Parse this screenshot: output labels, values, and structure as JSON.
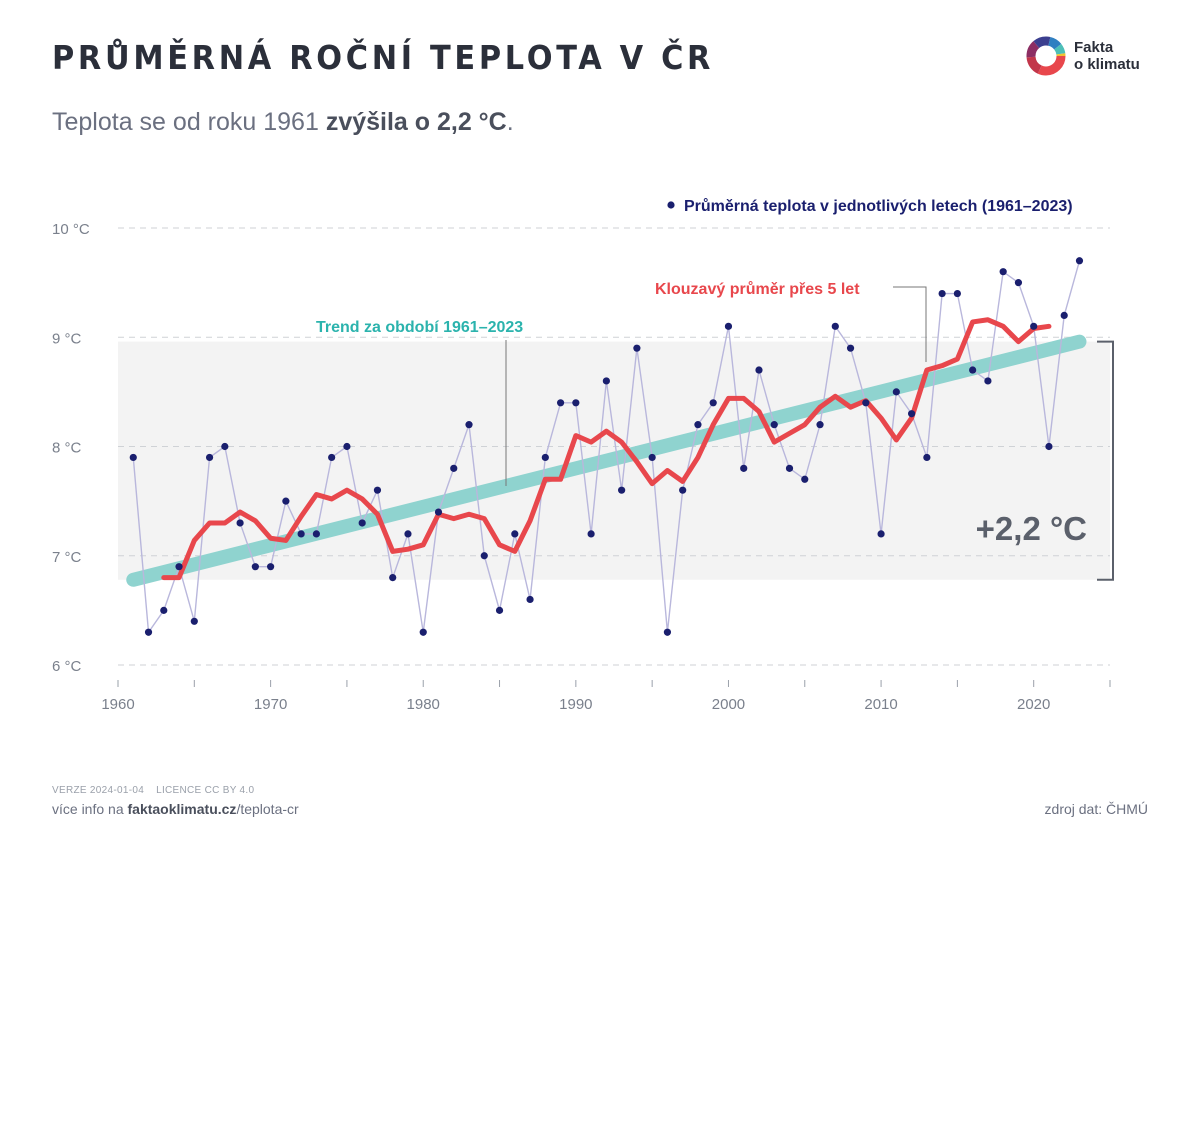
{
  "header": {
    "title": "PRŮMĚRNÁ ROČNÍ TEPLOTA V ČR",
    "subtitle_prefix": "Teplota se od roku 1961 ",
    "subtitle_bold": "zvýšila o 2,2 °C",
    "subtitle_suffix": "."
  },
  "logo": {
    "line1": "Fakta",
    "line2": "o klimatu"
  },
  "colors": {
    "dots": "#1a1f6e",
    "thin_line": "#b9b7dc",
    "moving_average": "#e8474c",
    "trend": "#8fd3cf",
    "trend_label": "#2bb3ad",
    "band": "#f3f3f3",
    "grid": "#cfd2d6",
    "axis_text": "#7a808c"
  },
  "chart_data": {
    "type": "line",
    "xlim": [
      1960,
      2025
    ],
    "ylim": [
      6,
      10
    ],
    "yticks": [
      {
        "value": 6,
        "label": "6 °C"
      },
      {
        "value": 7,
        "label": "7 °C"
      },
      {
        "value": 8,
        "label": "8 °C"
      },
      {
        "value": 9,
        "label": "9 °C"
      },
      {
        "value": 10,
        "label": "10 °C"
      }
    ],
    "xticks": [
      {
        "value": 1960,
        "label": "1960"
      },
      {
        "value": 1970,
        "label": "1970"
      },
      {
        "value": 1980,
        "label": "1980"
      },
      {
        "value": 1990,
        "label": "1990"
      },
      {
        "value": 2000,
        "label": "2000"
      },
      {
        "value": 2010,
        "label": "2010"
      },
      {
        "value": 2020,
        "label": "2020"
      }
    ],
    "grid": true,
    "legend": "top-right",
    "series": [
      {
        "name": "Průměrná teplota v jednotlivých letech (1961–2023)",
        "style": "dots",
        "x": [
          1961,
          1962,
          1963,
          1964,
          1965,
          1966,
          1967,
          1968,
          1969,
          1970,
          1971,
          1972,
          1973,
          1974,
          1975,
          1976,
          1977,
          1978,
          1979,
          1980,
          1981,
          1982,
          1983,
          1984,
          1985,
          1986,
          1987,
          1988,
          1989,
          1990,
          1991,
          1992,
          1993,
          1994,
          1995,
          1996,
          1997,
          1998,
          1999,
          2000,
          2001,
          2002,
          2003,
          2004,
          2005,
          2006,
          2007,
          2008,
          2009,
          2010,
          2011,
          2012,
          2013,
          2014,
          2015,
          2016,
          2017,
          2018,
          2019,
          2020,
          2021,
          2022,
          2023
        ],
        "values": [
          7.9,
          6.3,
          6.5,
          6.9,
          6.4,
          7.9,
          8.0,
          7.3,
          6.9,
          6.9,
          7.5,
          7.2,
          7.2,
          7.9,
          8.0,
          7.3,
          7.6,
          6.8,
          7.2,
          6.3,
          7.4,
          7.8,
          8.2,
          7.0,
          6.5,
          7.2,
          6.6,
          7.9,
          8.4,
          8.4,
          7.2,
          8.6,
          7.6,
          8.9,
          7.9,
          6.3,
          7.6,
          8.2,
          8.4,
          9.1,
          7.8,
          8.7,
          8.2,
          7.8,
          7.7,
          8.2,
          9.1,
          8.9,
          8.4,
          7.2,
          8.5,
          8.3,
          7.9,
          9.4,
          9.4,
          8.7,
          8.6,
          9.6,
          9.5,
          9.1,
          8.0,
          9.2,
          9.7
        ]
      },
      {
        "name": "Klouzavý průměr přes 5 let",
        "style": "line",
        "x": [
          1963,
          1964,
          1965,
          1966,
          1967,
          1968,
          1969,
          1970,
          1971,
          1972,
          1973,
          1974,
          1975,
          1976,
          1977,
          1978,
          1979,
          1980,
          1981,
          1982,
          1983,
          1984,
          1985,
          1986,
          1987,
          1988,
          1989,
          1990,
          1991,
          1992,
          1993,
          1994,
          1995,
          1996,
          1997,
          1998,
          1999,
          2000,
          2001,
          2002,
          2003,
          2004,
          2005,
          2006,
          2007,
          2008,
          2009,
          2010,
          2011,
          2012,
          2013,
          2014,
          2015,
          2016,
          2017,
          2018,
          2019,
          2020,
          2021
        ],
        "values": [
          6.8,
          6.8,
          7.14,
          7.3,
          7.3,
          7.4,
          7.32,
          7.16,
          7.14,
          7.36,
          7.56,
          7.52,
          7.6,
          7.52,
          7.38,
          7.04,
          7.06,
          7.1,
          7.38,
          7.34,
          7.38,
          7.34,
          7.1,
          7.04,
          7.32,
          7.7,
          7.7,
          8.1,
          8.04,
          8.14,
          8.04,
          7.86,
          7.66,
          7.78,
          7.68,
          7.9,
          8.2,
          8.44,
          8.44,
          8.32,
          8.04,
          8.12,
          8.2,
          8.36,
          8.46,
          8.36,
          8.42,
          8.26,
          8.06,
          8.26,
          8.7,
          8.74,
          8.8,
          9.14,
          9.16,
          9.1,
          8.96,
          9.08,
          9.1
        ]
      },
      {
        "name": "Trend za období 1961–2023",
        "style": "trend",
        "x": [
          1961,
          2023
        ],
        "values": [
          6.78,
          8.96
        ]
      }
    ],
    "annotation": {
      "label": "+2,2 °C",
      "from": 6.78,
      "to": 8.96
    }
  },
  "footer": {
    "version": "VERZE 2024-01-04",
    "license": "LICENCE CC BY 4.0",
    "info_prefix": "více info na ",
    "info_bold": "faktaoklimatu.cz",
    "info_suffix": "/teplota-cr",
    "source": "zdroj dat: ČHMÚ"
  }
}
